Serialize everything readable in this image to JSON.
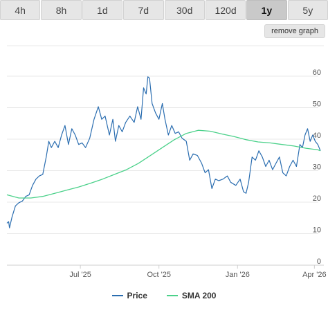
{
  "tabs": [
    {
      "label": "4h",
      "active": false
    },
    {
      "label": "8h",
      "active": false
    },
    {
      "label": "1d",
      "active": false
    },
    {
      "label": "7d",
      "active": false
    },
    {
      "label": "30d",
      "active": false
    },
    {
      "label": "120d",
      "active": false
    },
    {
      "label": "1y",
      "active": true
    },
    {
      "label": "5y",
      "active": false
    }
  ],
  "remove_graph_label": "remove graph",
  "colors": {
    "price": "#2a6db0",
    "sma": "#4bd18a",
    "grid": "#e8e8e8"
  },
  "chart_data": {
    "type": "line",
    "x_tick_labels": [
      "Jul '25",
      "Oct '25",
      "Jan '26",
      "Apr '26"
    ],
    "y_ticks": [
      0,
      10,
      20,
      30,
      40,
      50,
      60
    ],
    "ylim": [
      0,
      60
    ],
    "grid": true,
    "legend_position": "bottom-center",
    "series": [
      {
        "name": "Price",
        "points": [
          [
            "2025-04-06",
            12
          ],
          [
            "2025-04-08",
            12.5
          ],
          [
            "2025-04-09",
            10.5
          ],
          [
            "2025-04-12",
            14
          ],
          [
            "2025-04-16",
            17.5
          ],
          [
            "2025-04-20",
            18.5
          ],
          [
            "2025-04-24",
            19
          ],
          [
            "2025-04-28",
            20.5
          ],
          [
            "2025-05-02",
            21
          ],
          [
            "2025-05-06",
            24
          ],
          [
            "2025-05-10",
            26
          ],
          [
            "2025-05-14",
            27
          ],
          [
            "2025-05-18",
            27.5
          ],
          [
            "2025-05-22",
            33
          ],
          [
            "2025-05-25",
            38
          ],
          [
            "2025-05-28",
            36
          ],
          [
            "2025-06-01",
            38
          ],
          [
            "2025-06-05",
            36
          ],
          [
            "2025-06-09",
            40
          ],
          [
            "2025-06-13",
            43
          ],
          [
            "2025-06-17",
            37
          ],
          [
            "2025-06-21",
            42
          ],
          [
            "2025-06-25",
            40
          ],
          [
            "2025-06-29",
            37
          ],
          [
            "2025-07-03",
            37.5
          ],
          [
            "2025-07-07",
            36
          ],
          [
            "2025-07-12",
            39
          ],
          [
            "2025-07-17",
            45
          ],
          [
            "2025-07-22",
            49
          ],
          [
            "2025-07-26",
            45
          ],
          [
            "2025-07-30",
            46
          ],
          [
            "2025-08-04",
            40
          ],
          [
            "2025-08-08",
            45
          ],
          [
            "2025-08-11",
            38
          ],
          [
            "2025-08-15",
            43
          ],
          [
            "2025-08-19",
            41
          ],
          [
            "2025-08-23",
            44
          ],
          [
            "2025-08-28",
            46
          ],
          [
            "2025-09-02",
            44
          ],
          [
            "2025-09-06",
            49
          ],
          [
            "2025-09-10",
            45
          ],
          [
            "2025-09-13",
            55
          ],
          [
            "2025-09-16",
            53
          ],
          [
            "2025-09-18",
            58.5
          ],
          [
            "2025-09-20",
            58
          ],
          [
            "2025-09-23",
            50
          ],
          [
            "2025-09-27",
            47
          ],
          [
            "2025-10-01",
            45
          ],
          [
            "2025-10-05",
            50
          ],
          [
            "2025-10-08",
            45
          ],
          [
            "2025-10-12",
            40
          ],
          [
            "2025-10-16",
            43
          ],
          [
            "2025-10-20",
            40.5
          ],
          [
            "2025-10-24",
            41
          ],
          [
            "2025-10-28",
            39
          ],
          [
            "2025-11-02",
            38
          ],
          [
            "2025-11-06",
            32
          ],
          [
            "2025-11-10",
            34
          ],
          [
            "2025-11-15",
            33.5
          ],
          [
            "2025-11-20",
            31
          ],
          [
            "2025-11-24",
            28
          ],
          [
            "2025-11-28",
            29
          ],
          [
            "2025-12-02",
            23
          ],
          [
            "2025-12-06",
            26
          ],
          [
            "2025-12-10",
            25.5
          ],
          [
            "2025-12-15",
            26
          ],
          [
            "2025-12-20",
            27
          ],
          [
            "2025-12-24",
            25
          ],
          [
            "2025-12-30",
            24
          ],
          [
            "2026-01-04",
            26
          ],
          [
            "2026-01-08",
            22
          ],
          [
            "2026-01-11",
            21.5
          ],
          [
            "2026-01-14",
            25
          ],
          [
            "2026-01-18",
            33
          ],
          [
            "2026-01-22",
            32
          ],
          [
            "2026-01-26",
            35
          ],
          [
            "2026-01-30",
            33
          ],
          [
            "2026-02-03",
            30
          ],
          [
            "2026-02-07",
            32
          ],
          [
            "2026-02-11",
            29
          ],
          [
            "2026-02-15",
            31
          ],
          [
            "2026-02-19",
            33
          ],
          [
            "2026-02-23",
            28
          ],
          [
            "2026-02-27",
            27
          ],
          [
            "2026-03-03",
            30
          ],
          [
            "2026-03-07",
            32
          ],
          [
            "2026-03-11",
            30
          ],
          [
            "2026-03-15",
            37
          ],
          [
            "2026-03-18",
            36
          ],
          [
            "2026-03-21",
            40
          ],
          [
            "2026-03-24",
            42
          ],
          [
            "2026-03-27",
            38
          ],
          [
            "2026-03-30",
            40
          ],
          [
            "2026-04-02",
            38
          ],
          [
            "2026-04-05",
            37
          ],
          [
            "2026-04-08",
            35
          ]
        ]
      },
      {
        "name": "SMA 200",
        "points": [
          [
            "2025-04-06",
            21
          ],
          [
            "2025-04-20",
            20
          ],
          [
            "2025-05-04",
            20
          ],
          [
            "2025-05-18",
            20.5
          ],
          [
            "2025-06-01",
            21.5
          ],
          [
            "2025-06-15",
            22.5
          ],
          [
            "2025-06-29",
            23.5
          ],
          [
            "2025-07-13",
            24.7
          ],
          [
            "2025-07-27",
            26
          ],
          [
            "2025-08-10",
            27.5
          ],
          [
            "2025-08-24",
            29
          ],
          [
            "2025-09-07",
            31
          ],
          [
            "2025-09-21",
            33.5
          ],
          [
            "2025-10-05",
            36
          ],
          [
            "2025-10-19",
            38.5
          ],
          [
            "2025-11-02",
            40.5
          ],
          [
            "2025-11-16",
            41.5
          ],
          [
            "2025-11-30",
            41.2
          ],
          [
            "2025-12-14",
            40.3
          ],
          [
            "2025-12-28",
            39.5
          ],
          [
            "2026-01-11",
            38.5
          ],
          [
            "2026-01-25",
            37.8
          ],
          [
            "2026-02-08",
            37.5
          ],
          [
            "2026-02-22",
            37
          ],
          [
            "2026-03-08",
            36.5
          ],
          [
            "2026-03-22",
            35.8
          ],
          [
            "2026-04-05",
            35.3
          ],
          [
            "2026-04-08",
            35
          ]
        ]
      }
    ]
  },
  "legend": [
    {
      "label": "Price"
    },
    {
      "label": "SMA 200"
    }
  ]
}
